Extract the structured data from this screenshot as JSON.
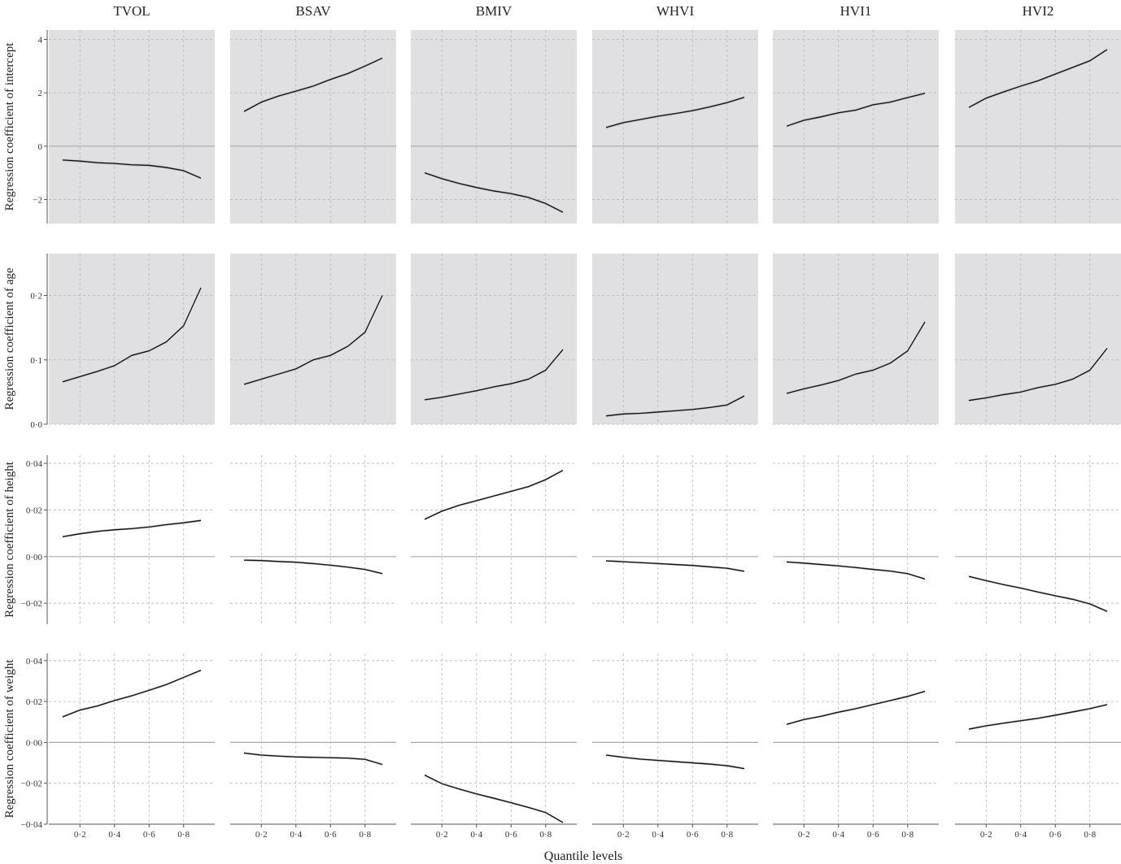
{
  "figure": {
    "xlabel": "Quantile levels",
    "columns": [
      "TVOL",
      "BSAV",
      "BMIV",
      "WHVI",
      "HVI1",
      "HVI2"
    ],
    "row_labels": [
      "Regression coefficient of intercept",
      "Regression coefficient of age",
      "Regression coefficient of height",
      "Regression coefficient of weight"
    ],
    "x_ticks": [
      "0·2",
      "0·4",
      "0·6",
      "0·8"
    ],
    "colors": {
      "panel_shaded": "#e0e0e2",
      "grid_line": "#b5b5b5",
      "zero_line": "#a9a9a9",
      "line": "#111111",
      "band": "#b8b8b8"
    }
  },
  "chart_data": {
    "type": "line",
    "x": [
      0.1,
      0.2,
      0.3,
      0.4,
      0.5,
      0.6,
      0.7,
      0.8,
      0.9
    ],
    "rows": [
      {
        "name": "intercept",
        "ylabel": "Regression coefficient of intercept",
        "ylim": [
          -2.9,
          4.35
        ],
        "y_ticks": [
          -2,
          0,
          2,
          4
        ],
        "y_tick_labels": [
          "−2",
          "0",
          "2",
          "4"
        ],
        "zero_line": true,
        "shaded": [
          true,
          true,
          true,
          true,
          true,
          true
        ],
        "series": [
          {
            "name": "TVOL",
            "values": [
              -0.52,
              -0.56,
              -0.62,
              -0.65,
              -0.7,
              -0.72,
              -0.8,
              -0.92,
              -1.2
            ]
          },
          {
            "name": "BSAV",
            "values": [
              1.3,
              1.65,
              1.88,
              2.06,
              2.25,
              2.5,
              2.72,
              3.0,
              3.3
            ]
          },
          {
            "name": "BMIV",
            "values": [
              -1.0,
              -1.22,
              -1.4,
              -1.55,
              -1.68,
              -1.78,
              -1.92,
              -2.15,
              -2.48
            ]
          },
          {
            "name": "WHVI",
            "values": [
              0.7,
              0.88,
              1.0,
              1.12,
              1.22,
              1.33,
              1.47,
              1.63,
              1.83
            ]
          },
          {
            "name": "HVI1",
            "values": [
              0.75,
              0.97,
              1.1,
              1.25,
              1.35,
              1.55,
              1.65,
              1.82,
              1.98
            ]
          },
          {
            "name": "HVI2",
            "values": [
              1.45,
              1.8,
              2.03,
              2.25,
              2.45,
              2.7,
              2.95,
              3.2,
              3.62
            ]
          }
        ]
      },
      {
        "name": "age",
        "ylabel": "Regression coefficient of age",
        "ylim": [
          0.0,
          0.265
        ],
        "y_ticks": [
          0.0,
          0.1,
          0.2
        ],
        "y_tick_labels": [
          "0·0",
          "0·1",
          "0·2"
        ],
        "zero_line": false,
        "shaded": [
          true,
          true,
          true,
          true,
          true,
          true
        ],
        "series": [
          {
            "name": "TVOL",
            "values": [
              0.066,
              0.074,
              0.082,
              0.091,
              0.107,
              0.114,
              0.128,
              0.153,
              0.212
            ]
          },
          {
            "name": "BSAV",
            "values": [
              0.062,
              0.07,
              0.078,
              0.086,
              0.1,
              0.107,
              0.121,
              0.143,
              0.2
            ]
          },
          {
            "name": "BMIV",
            "values": [
              0.038,
              0.042,
              0.047,
              0.052,
              0.058,
              0.063,
              0.07,
              0.084,
              0.116
            ]
          },
          {
            "name": "WHVI",
            "values": [
              0.013,
              0.016,
              0.017,
              0.019,
              0.021,
              0.023,
              0.026,
              0.03,
              0.044
            ]
          },
          {
            "name": "HVI1",
            "values": [
              0.048,
              0.055,
              0.061,
              0.068,
              0.078,
              0.084,
              0.095,
              0.114,
              0.159
            ]
          },
          {
            "name": "HVI2",
            "values": [
              0.037,
              0.041,
              0.046,
              0.05,
              0.057,
              0.062,
              0.07,
              0.084,
              0.118
            ]
          }
        ]
      },
      {
        "name": "height",
        "ylabel": "Regression coefficient of height",
        "ylim": [
          -0.029,
          0.0435
        ],
        "y_ticks": [
          -0.02,
          0.0,
          0.02,
          0.04
        ],
        "y_tick_labels": [
          "−0·02",
          "0·00",
          "0·02",
          "0·04"
        ],
        "zero_line": true,
        "shaded": [
          false,
          false,
          false,
          false,
          false,
          false
        ],
        "series": [
          {
            "name": "TVOL",
            "values": [
              0.0085,
              0.0098,
              0.0108,
              0.0115,
              0.012,
              0.0127,
              0.0137,
              0.0145,
              0.0155
            ]
          },
          {
            "name": "BSAV",
            "values": [
              -0.0015,
              -0.0017,
              -0.0021,
              -0.0024,
              -0.003,
              -0.0037,
              -0.0045,
              -0.0055,
              -0.0073
            ]
          },
          {
            "name": "BMIV",
            "values": [
              0.016,
              0.0195,
              0.022,
              0.024,
              0.026,
              0.028,
              0.03,
              0.033,
              0.037
            ]
          },
          {
            "name": "WHVI",
            "values": [
              -0.0018,
              -0.0022,
              -0.0026,
              -0.003,
              -0.0034,
              -0.0038,
              -0.0044,
              -0.005,
              -0.0063
            ]
          },
          {
            "name": "HVI1",
            "values": [
              -0.0023,
              -0.0028,
              -0.0034,
              -0.004,
              -0.0047,
              -0.0055,
              -0.0062,
              -0.0073,
              -0.0096
            ]
          },
          {
            "name": "HVI2",
            "values": [
              -0.0085,
              -0.0103,
              -0.012,
              -0.0135,
              -0.0152,
              -0.0168,
              -0.0183,
              -0.0203,
              -0.0235
            ]
          }
        ]
      },
      {
        "name": "weight",
        "ylabel": "Regression coefficient of weight",
        "ylim": [
          -0.04,
          0.0435
        ],
        "y_ticks": [
          -0.04,
          -0.02,
          0.0,
          0.02,
          0.04
        ],
        "y_tick_labels": [
          "−0·04",
          "−0·02",
          "0·00",
          "0·02",
          "0·04"
        ],
        "zero_line": true,
        "shaded": [
          false,
          false,
          false,
          false,
          false,
          false
        ],
        "series": [
          {
            "name": "TVOL",
            "values": [
              0.0125,
              0.0158,
              0.0178,
              0.0205,
              0.0228,
              0.0255,
              0.0283,
              0.0318,
              0.0353
            ]
          },
          {
            "name": "BSAV",
            "values": [
              -0.0052,
              -0.0062,
              -0.0067,
              -0.0071,
              -0.0073,
              -0.0075,
              -0.0077,
              -0.0083,
              -0.0108
            ]
          },
          {
            "name": "BMIV",
            "values": [
              -0.016,
              -0.0202,
              -0.0228,
              -0.0252,
              -0.0273,
              -0.0295,
              -0.0318,
              -0.0343,
              -0.0392
            ]
          },
          {
            "name": "WHVI",
            "values": [
              -0.0062,
              -0.0073,
              -0.0082,
              -0.0088,
              -0.0094,
              -0.01,
              -0.0106,
              -0.0114,
              -0.0128
            ]
          },
          {
            "name": "HVI1",
            "values": [
              0.0088,
              0.0112,
              0.0128,
              0.0148,
              0.0165,
              0.0185,
              0.0205,
              0.0225,
              0.025
            ]
          },
          {
            "name": "HVI2",
            "values": [
              0.0065,
              0.0081,
              0.0094,
              0.0106,
              0.0118,
              0.0133,
              0.0149,
              0.0165,
              0.0185
            ]
          }
        ]
      }
    ]
  }
}
